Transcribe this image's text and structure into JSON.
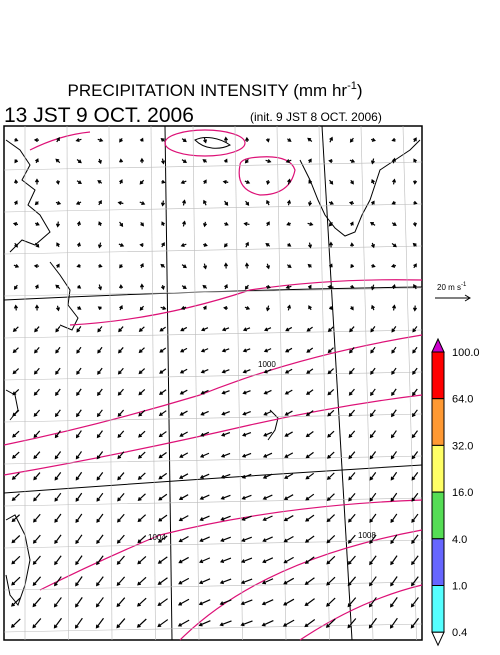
{
  "title": {
    "main": "PRECIPITATION INTENSITY (mm hr",
    "sup": "-1",
    "end": ")"
  },
  "valid_time": "13 JST 9 OCT. 2006",
  "init_time": "(init. 9 JST 8 OCT. 2006)",
  "reference_arrow": {
    "main": "20 m s",
    "sup": "-1"
  },
  "contour_labels": [
    "1000",
    "1004",
    "1008"
  ],
  "colorbar": {
    "labels": [
      "100.0",
      "64.0",
      "32.0",
      "16.0",
      "4.0",
      "1.0",
      "0.4"
    ],
    "colors": [
      "#cc00cc",
      "#ff0000",
      "#ff9933",
      "#ffff66",
      "#55dd55",
      "#6666ff",
      "#55ffff",
      "#ffffff"
    ]
  }
}
